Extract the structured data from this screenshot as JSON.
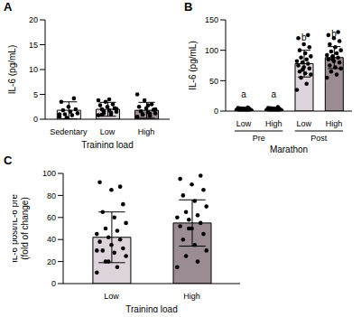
{
  "chart_data": [
    {
      "type": "bar",
      "title": "A",
      "xlabel": "Training load",
      "ylabel": [
        "IL-6 (pg/mL)"
      ],
      "categories": [
        "Sedentary",
        "Low",
        "High"
      ],
      "values": [
        1.8,
        2.0,
        1.8
      ],
      "errors": [
        1.7,
        1.4,
        1.6
      ],
      "colors": [
        "#ffffff",
        "#ddd3db",
        "#9b8c94"
      ],
      "points": [
        [
          0.5,
          0.8,
          1,
          1.2,
          1.5,
          1.8,
          2,
          2.5,
          3.5,
          4.2,
          0.3,
          1
        ],
        [
          0.8,
          1,
          1.2,
          1.5,
          1.8,
          2,
          2.2,
          2.5,
          2.8,
          3,
          3.5,
          3.8,
          1.3,
          1.6,
          2.1,
          4,
          0.9
        ],
        [
          0.5,
          0.7,
          1,
          1.2,
          1.4,
          1.6,
          1.9,
          2.2,
          2.5,
          3,
          3.8,
          5,
          1.1,
          0.9,
          2,
          2.8
        ]
      ],
      "ylim": [
        0,
        20
      ],
      "yticks": [
        0,
        5,
        10,
        15,
        20
      ]
    },
    {
      "type": "bar",
      "title": "B",
      "xlabel": "Marathon",
      "ylabel": [
        "IL-6 (pg/mL)"
      ],
      "categories": [
        "Low",
        "High",
        "Low",
        "High"
      ],
      "groups": [
        "Pre",
        "Post"
      ],
      "values": [
        3,
        3,
        78,
        88
      ],
      "errors": [
        3,
        3,
        22,
        18
      ],
      "colors": [
        "#ddd3db",
        "#9b8c94",
        "#ddd3db",
        "#9b8c94"
      ],
      "annotations": [
        "a",
        "a",
        "b",
        "b"
      ],
      "points": [
        [
          0.5,
          1,
          1.5,
          2,
          2.5,
          3,
          3.5,
          4,
          5,
          6,
          1,
          2,
          2.8,
          4.5
        ],
        [
          0.5,
          1,
          1.5,
          2,
          2.5,
          3,
          3.5,
          4,
          5,
          6.5,
          1.2,
          2.2,
          3.2,
          4.8
        ],
        [
          35,
          45,
          55,
          60,
          62,
          65,
          70,
          72,
          75,
          78,
          80,
          82,
          85,
          88,
          90,
          95,
          100,
          105,
          110,
          120,
          125,
          68
        ],
        [
          55,
          60,
          65,
          70,
          72,
          75,
          80,
          82,
          85,
          88,
          90,
          92,
          95,
          98,
          100,
          105,
          110,
          115,
          120,
          125,
          130,
          85
        ]
      ],
      "ylim": [
        0,
        150
      ],
      "yticks": [
        0,
        50,
        100,
        150
      ]
    },
    {
      "type": "bar",
      "title": "C",
      "xlabel": "Training load",
      "ylabel": [
        "IL-6 post/IL-6 pre",
        "(fold of change)"
      ],
      "categories": [
        "Low",
        "High"
      ],
      "values": [
        42,
        55
      ],
      "errors": [
        23,
        21
      ],
      "colors": [
        "#ddd3db",
        "#9b8c94"
      ],
      "points": [
        [
          10,
          15,
          20,
          25,
          28,
          30,
          32,
          35,
          38,
          40,
          42,
          45,
          48,
          50,
          55,
          60,
          65,
          72,
          85,
          92,
          88,
          20,
          30
        ],
        [
          15,
          20,
          25,
          30,
          35,
          40,
          45,
          50,
          52,
          55,
          58,
          60,
          62,
          65,
          70,
          75,
          80,
          85,
          90,
          95,
          98,
          50
        ]
      ],
      "ylim": [
        0,
        100
      ],
      "yticks": [
        0,
        20,
        40,
        60,
        80,
        100
      ]
    }
  ]
}
